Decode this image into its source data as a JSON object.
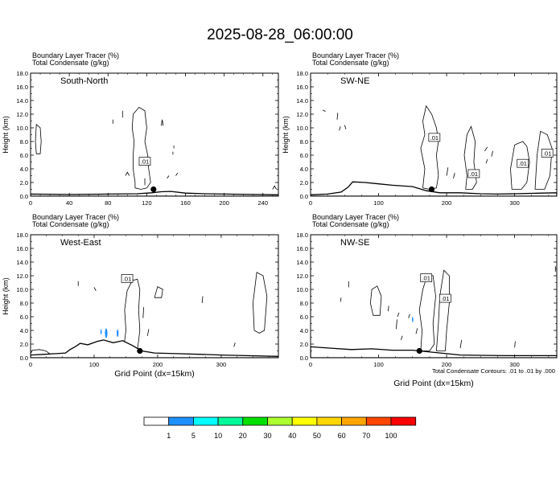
{
  "title": "2025-08-28_06:00:00",
  "footnote": "Total Condensate Contours: .01 to .01 by .000",
  "colorbar": {
    "colors": [
      "#ffffff",
      "#1e90ff",
      "#00ffff",
      "#00fa9a",
      "#00e000",
      "#adff2f",
      "#ffff00",
      "#ffd700",
      "#ffa500",
      "#ff4500",
      "#ff0000"
    ],
    "labels": [
      "1",
      "5",
      "10",
      "20",
      "30",
      "40",
      "50",
      "60",
      "70",
      "100"
    ]
  },
  "panels": [
    {
      "name": "South-North",
      "header1": "Boundary Layer Tracer   (%)",
      "header2": "Total Condensate   (g/kg)",
      "xlabel": "",
      "ylabel": "Height (km)",
      "xlim": [
        0,
        256
      ],
      "ylim": [
        0,
        18
      ],
      "xticks": [
        0,
        40,
        80,
        120,
        160,
        200,
        240
      ],
      "yticks": [
        0,
        2,
        4,
        6,
        8,
        10,
        12,
        14,
        16,
        18
      ],
      "terrain": [
        [
          0,
          0.3
        ],
        [
          40,
          0.25
        ],
        [
          80,
          0.3
        ],
        [
          110,
          0.35
        ],
        [
          125,
          0.5
        ],
        [
          135,
          0.65
        ],
        [
          145,
          0.7
        ],
        [
          160,
          0.45
        ],
        [
          180,
          0.35
        ],
        [
          200,
          0.3
        ],
        [
          230,
          0.25
        ],
        [
          256,
          0.2
        ]
      ],
      "marker": [
        127,
        1.0
      ],
      "labels": [
        {
          "text": ".01",
          "x": 118,
          "y": 5.1
        }
      ],
      "contours": [
        [
          [
            108,
            1.2
          ],
          [
            108,
            2
          ],
          [
            106,
            4
          ],
          [
            106,
            6
          ],
          [
            107,
            8
          ],
          [
            105,
            10
          ],
          [
            106,
            12
          ],
          [
            112,
            13
          ],
          [
            118,
            12.5
          ],
          [
            120,
            10
          ],
          [
            118,
            8
          ],
          [
            121,
            6
          ],
          [
            122,
            4
          ],
          [
            124,
            2
          ],
          [
            120,
            1.2
          ],
          [
            114,
            1.0
          ],
          [
            108,
            1.2
          ]
        ],
        [
          [
            6,
            6.2
          ],
          [
            5,
            8
          ],
          [
            6,
            10.5
          ],
          [
            10,
            10
          ],
          [
            11,
            8
          ],
          [
            10,
            6.2
          ],
          [
            6,
            6.2
          ]
        ],
        [
          [
            85,
            10.6
          ],
          [
            85,
            11.2
          ]
        ],
        [
          [
            95,
            11.5
          ],
          [
            95,
            12.5
          ]
        ],
        [
          [
            135,
            10.3
          ],
          [
            136,
            11.2
          ],
          [
            137,
            10.3
          ]
        ],
        [
          [
            98,
            3.0
          ],
          [
            100,
            3.5
          ],
          [
            102,
            3.0
          ]
        ],
        [
          [
            118,
            1.6
          ],
          [
            118,
            2.6
          ]
        ],
        [
          [
            141,
            2.6
          ],
          [
            143,
            3.0
          ]
        ],
        [
          [
            147,
            6.1
          ],
          [
            147,
            6.5
          ]
        ],
        [
          [
            148,
            7.0
          ],
          [
            148,
            7.4
          ]
        ],
        [
          [
            150,
            3.0
          ],
          [
            152,
            3.4
          ]
        ],
        [
          [
            250,
            1.0
          ],
          [
            252,
            1.5
          ],
          [
            254,
            1.0
          ]
        ]
      ],
      "shades": []
    },
    {
      "name": "SW-NE",
      "header1": "Boundary Layer Tracer   (%)",
      "header2": "Total Condensate   (g/kg)",
      "xlabel": "",
      "ylabel": "Height (km)",
      "xlim": [
        0,
        362
      ],
      "ylim": [
        0,
        18
      ],
      "xticks": [
        0,
        100,
        200,
        300
      ],
      "yticks": [
        0,
        2,
        4,
        6,
        8,
        10,
        12,
        14,
        16,
        18
      ],
      "terrain": [
        [
          0,
          0.2
        ],
        [
          25,
          0.3
        ],
        [
          45,
          0.6
        ],
        [
          55,
          1.3
        ],
        [
          62,
          2.1
        ],
        [
          80,
          2.0
        ],
        [
          100,
          1.8
        ],
        [
          120,
          1.6
        ],
        [
          150,
          1.4
        ],
        [
          170,
          0.8
        ],
        [
          190,
          0.5
        ],
        [
          220,
          0.5
        ],
        [
          250,
          0.35
        ],
        [
          275,
          0.3
        ],
        [
          300,
          0.35
        ],
        [
          340,
          0.45
        ],
        [
          362,
          0.5
        ]
      ],
      "marker": [
        178,
        1.0
      ],
      "labels": [
        {
          "text": ".01",
          "x": 182,
          "y": 8.6
        },
        {
          "text": ".01",
          "x": 240,
          "y": 3.3
        },
        {
          "text": ".01",
          "x": 312,
          "y": 4.8
        },
        {
          "text": ".01",
          "x": 348,
          "y": 6.3
        }
      ],
      "contours": [
        [
          [
            165,
            1.2
          ],
          [
            168,
            4
          ],
          [
            162,
            7
          ],
          [
            168,
            9
          ],
          [
            165,
            11
          ],
          [
            170,
            13.2
          ],
          [
            178,
            12
          ],
          [
            185,
            10
          ],
          [
            188,
            8
          ],
          [
            185,
            6
          ],
          [
            188,
            3
          ],
          [
            185,
            1.2
          ],
          [
            175,
            1.0
          ],
          [
            165,
            1.2
          ]
        ],
        [
          [
            228,
            1.0
          ],
          [
            230,
            3
          ],
          [
            226,
            6
          ],
          [
            230,
            9
          ],
          [
            236,
            10.2
          ],
          [
            242,
            8
          ],
          [
            240,
            5
          ],
          [
            244,
            2
          ],
          [
            238,
            1.0
          ],
          [
            228,
            1.0
          ]
        ],
        [
          [
            296,
            1.0
          ],
          [
            294,
            4
          ],
          [
            300,
            7.5
          ],
          [
            312,
            8
          ],
          [
            318,
            7.3
          ],
          [
            322,
            5
          ],
          [
            318,
            2
          ],
          [
            310,
            1.0
          ],
          [
            296,
            1.0
          ]
        ],
        [
          [
            330,
            1.0
          ],
          [
            333,
            6
          ],
          [
            338,
            9.5
          ],
          [
            348,
            9
          ],
          [
            355,
            7
          ],
          [
            352,
            3
          ],
          [
            344,
            1.0
          ],
          [
            330,
            1.0
          ]
        ],
        [
          [
            0,
            10
          ],
          [
            0,
            14
          ]
        ],
        [
          [
            18,
            12.6
          ],
          [
            22,
            12.4
          ]
        ],
        [
          [
            39,
            11.2
          ],
          [
            40,
            12.2
          ]
        ],
        [
          [
            42,
            9.6
          ],
          [
            44,
            10.2
          ]
        ],
        [
          [
            50,
            10.4
          ],
          [
            52,
            9.8
          ]
        ],
        [
          [
            256,
            6.6
          ],
          [
            260,
            7.2
          ]
        ],
        [
          [
            258,
            4.8
          ],
          [
            260,
            5.4
          ]
        ],
        [
          [
            266,
            5.8
          ],
          [
            268,
            6.6
          ]
        ],
        [
          [
            200,
            3
          ],
          [
            202,
            4.2
          ]
        ],
        [
          [
            210,
            2.6
          ],
          [
            212,
            3.4
          ]
        ]
      ],
      "shades": []
    },
    {
      "name": "West-East",
      "header1": "Boundary Layer Tracer   (%)",
      "header2": "Total Condensate   (g/kg)",
      "xlabel": "Grid Point (dx=15km)",
      "ylabel": "Height (km)",
      "xlim": [
        0,
        390
      ],
      "ylim": [
        0,
        18
      ],
      "xticks": [
        0,
        100,
        200,
        300
      ],
      "yticks": [
        0,
        2,
        4,
        6,
        8,
        10,
        12,
        14,
        16,
        18
      ],
      "terrain": [
        [
          0,
          0.4
        ],
        [
          20,
          0.5
        ],
        [
          40,
          0.6
        ],
        [
          55,
          0.7
        ],
        [
          62,
          1.2
        ],
        [
          70,
          1.6
        ],
        [
          78,
          2.1
        ],
        [
          90,
          1.9
        ],
        [
          105,
          2.4
        ],
        [
          115,
          2.6
        ],
        [
          130,
          2.2
        ],
        [
          145,
          2.5
        ],
        [
          160,
          1.8
        ],
        [
          175,
          1.0
        ],
        [
          195,
          0.7
        ],
        [
          230,
          0.6
        ],
        [
          270,
          0.5
        ],
        [
          300,
          0.4
        ],
        [
          340,
          0.3
        ],
        [
          390,
          0.2
        ]
      ],
      "marker": [
        172,
        1.0
      ],
      "labels": [
        {
          "text": ".01",
          "x": 152,
          "y": 11.6
        }
      ],
      "contours": [
        [
          [
            0,
            0.6
          ],
          [
            3,
            1.1
          ],
          [
            14,
            1.2
          ],
          [
            24,
            1.0
          ],
          [
            30,
            0.6
          ]
        ],
        [
          [
            146,
            1.0
          ],
          [
            150,
            4
          ],
          [
            148,
            7
          ],
          [
            152,
            9.8
          ],
          [
            160,
            11.3
          ],
          [
            168,
            11.5
          ],
          [
            172,
            10
          ],
          [
            170,
            7
          ],
          [
            172,
            4
          ],
          [
            168,
            1.0
          ],
          [
            158,
            0.9
          ],
          [
            146,
            1.0
          ]
        ],
        [
          [
            195,
            8.8
          ],
          [
            200,
            10.4
          ],
          [
            208,
            10
          ],
          [
            206,
            8.8
          ],
          [
            195,
            8.8
          ]
        ],
        [
          [
            352,
            4
          ],
          [
            350,
            8
          ],
          [
            356,
            12.5
          ],
          [
            366,
            12
          ],
          [
            372,
            9
          ],
          [
            368,
            4
          ],
          [
            360,
            3.6
          ],
          [
            352,
            4
          ]
        ],
        [
          [
            75,
            10.5
          ],
          [
            75,
            11.2
          ]
        ],
        [
          [
            100,
            10.3
          ],
          [
            103,
            9.8
          ]
        ],
        [
          [
            270,
            8.0
          ],
          [
            271,
            9.0
          ]
        ],
        [
          [
            177,
            5.8
          ],
          [
            178,
            7.4
          ]
        ],
        [
          [
            184,
            3.2
          ],
          [
            186,
            4.2
          ]
        ],
        [
          [
            320,
            1.6
          ],
          [
            322,
            2.2
          ]
        ]
      ],
      "shades": [
        {
          "x": 119,
          "y": 3.6,
          "rx": 2,
          "ry": 0.7,
          "color": "#1e90ff"
        },
        {
          "x": 137,
          "y": 3.6,
          "rx": 1.5,
          "ry": 0.55,
          "color": "#1e90ff"
        },
        {
          "x": 111,
          "y": 3.8,
          "rx": 1,
          "ry": 0.4,
          "color": "#1e90ff"
        }
      ]
    },
    {
      "name": "NW-SE",
      "header1": "Boundary Layer Tracer   (%)",
      "header2": "Total Condensate   (g/kg)",
      "xlabel": "Grid Point (dx=15km)",
      "ylabel": "",
      "xlim": [
        0,
        362
      ],
      "ylim": [
        0,
        18
      ],
      "xticks": [
        0,
        100,
        200,
        300
      ],
      "yticks": [
        0,
        2,
        4,
        6,
        8,
        10,
        12,
        14,
        16,
        18
      ],
      "terrain": [
        [
          0,
          1.6
        ],
        [
          30,
          1.4
        ],
        [
          60,
          1.2
        ],
        [
          90,
          1.3
        ],
        [
          120,
          1.1
        ],
        [
          150,
          1.1
        ],
        [
          170,
          0.9
        ],
        [
          200,
          0.6
        ],
        [
          220,
          0.4
        ],
        [
          250,
          0.35
        ],
        [
          290,
          0.3
        ],
        [
          330,
          0.3
        ],
        [
          362,
          0.3
        ]
      ],
      "marker": [
        160,
        1.0
      ],
      "labels": [
        {
          "text": ".01",
          "x": 170,
          "y": 11.7
        },
        {
          "text": ".01",
          "x": 198,
          "y": 8.7
        }
      ],
      "contours": [
        [
          [
            162,
            1.0
          ],
          [
            164,
            4
          ],
          [
            160,
            7
          ],
          [
            165,
            10
          ],
          [
            172,
            12.2
          ],
          [
            180,
            12
          ],
          [
            184,
            9
          ],
          [
            180,
            5
          ],
          [
            182,
            2
          ],
          [
            175,
            1.0
          ],
          [
            162,
            1.0
          ]
        ],
        [
          [
            185,
            1.0
          ],
          [
            188,
            5
          ],
          [
            190,
            9
          ],
          [
            196,
            12.8
          ],
          [
            204,
            12
          ],
          [
            204,
            8
          ],
          [
            200,
            4
          ],
          [
            198,
            1.0
          ],
          [
            185,
            1.0
          ]
        ],
        [
          [
            92,
            6.2
          ],
          [
            88,
            8
          ],
          [
            90,
            10
          ],
          [
            98,
            10.5
          ],
          [
            104,
            9
          ],
          [
            102,
            6.2
          ],
          [
            92,
            6.2
          ]
        ],
        [
          [
            56,
            10.3
          ],
          [
            56,
            11.2
          ]
        ],
        [
          [
            44,
            8.2
          ],
          [
            45,
            8.8
          ]
        ],
        [
          [
            114,
            6.8
          ],
          [
            115,
            7.6
          ]
        ],
        [
          [
            128,
            6.0
          ],
          [
            130,
            6.6
          ]
        ],
        [
          [
            133,
            2.6
          ],
          [
            135,
            3.2
          ]
        ],
        [
          [
            144,
            5.8
          ],
          [
            146,
            6.4
          ]
        ],
        [
          [
            155,
            3.5
          ],
          [
            157,
            4.3
          ]
        ],
        [
          [
            126,
            4.2
          ],
          [
            127,
            5.6
          ]
        ],
        [
          [
            220,
            1.4
          ],
          [
            222,
            2.6
          ]
        ],
        [
          [
            300,
            1.5
          ],
          [
            301,
            2.4
          ]
        ],
        [
          [
            360,
            12.6
          ],
          [
            360,
            13.4
          ]
        ]
      ],
      "shades": [
        {
          "x": 150,
          "y": 5.6,
          "rx": 1,
          "ry": 0.4,
          "color": "#1e90ff"
        }
      ]
    }
  ]
}
